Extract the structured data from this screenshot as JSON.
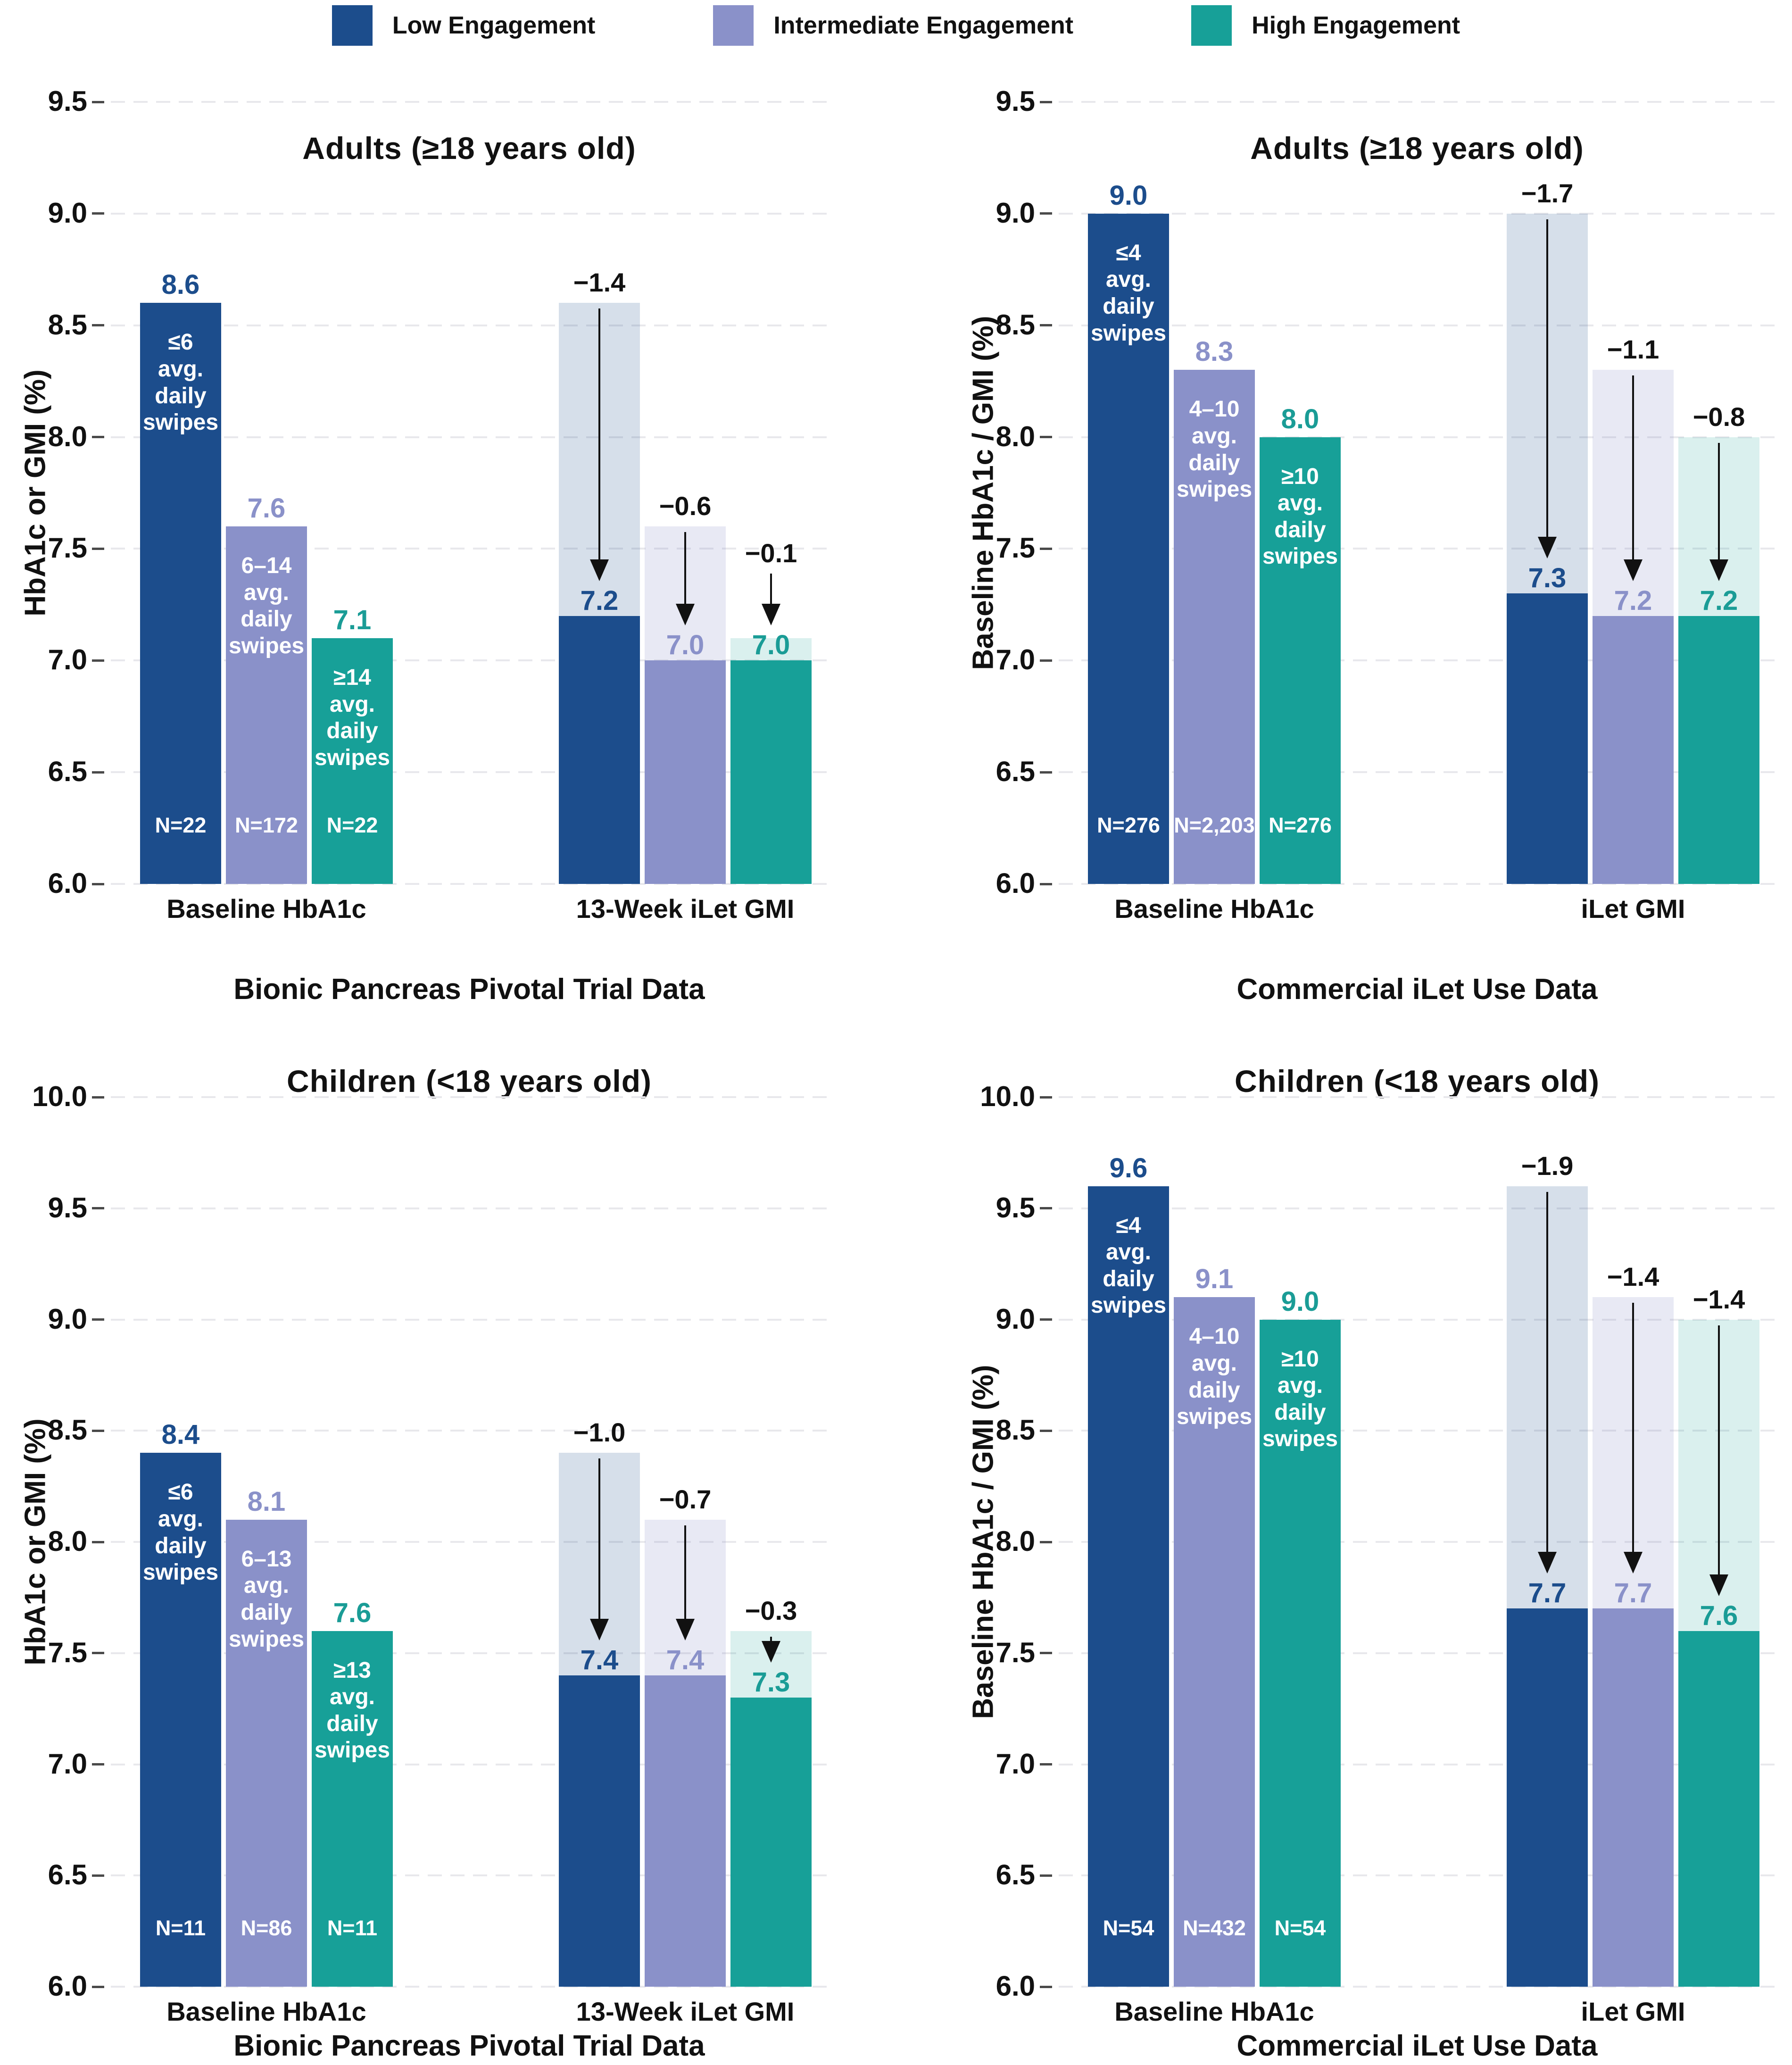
{
  "legend": {
    "items": [
      {
        "id": "low",
        "label": "Low Engagement",
        "color": "#1C4D8C"
      },
      {
        "id": "intermediate",
        "label": "Intermediate Engagement",
        "color": "#8A91C9"
      },
      {
        "id": "high",
        "label": "High Engagement",
        "color": "#17A098"
      }
    ]
  },
  "series_styles": {
    "low": {
      "color": "#1C4D8C",
      "ghost_color": "rgba(28,77,140,0.18)",
      "value_color": "#1C4D8C"
    },
    "intermediate": {
      "color": "#8A91C9",
      "ghost_color": "rgba(138,145,201,0.20)",
      "value_color": "#8A91C9"
    },
    "high": {
      "color": "#17A098",
      "ghost_color": "rgba(23,160,152,0.16)",
      "value_color": "#1A9C96"
    }
  },
  "chart_data": [
    {
      "type": "bar",
      "title": "Adults (≥18 years old)",
      "ylabel": "HbA1c or GMI (%)",
      "xlabel": "Bionic Pancreas Pivotal Trial Data",
      "ylim": [
        6.0,
        9.5
      ],
      "ytick_step": 0.5,
      "grid": true,
      "legend_position": "top-center",
      "groups": [
        {
          "label": "Baseline HbA1c",
          "bars": [
            {
              "series": "low",
              "value": 8.6,
              "display": "8.6",
              "bar_text": [
                "≤6",
                "avg.",
                "daily",
                "swipes"
              ],
              "n": "N=22"
            },
            {
              "series": "intermediate",
              "value": 7.6,
              "display": "7.6",
              "bar_text": [
                "6–14",
                "avg.",
                "daily",
                "swipes"
              ],
              "n": "N=172"
            },
            {
              "series": "high",
              "value": 7.1,
              "display": "7.1",
              "bar_text": [
                "≥14",
                "avg.",
                "daily",
                "swipes"
              ],
              "n": "N=22"
            }
          ]
        },
        {
          "label": "13-Week iLet GMI",
          "bars": [
            {
              "series": "low",
              "value": 7.2,
              "display": "7.2",
              "baseline_from": 8.6,
              "delta": "−1.4"
            },
            {
              "series": "intermediate",
              "value": 7.0,
              "display": "7.0",
              "baseline_from": 7.6,
              "delta": "−0.6"
            },
            {
              "series": "high",
              "value": 7.0,
              "display": "7.0",
              "baseline_from": 7.1,
              "delta": "−0.1"
            }
          ]
        }
      ]
    },
    {
      "type": "bar",
      "title": "Adults (≥18 years old)",
      "ylabel": "Baseline HbA1c / GMI (%)",
      "xlabel": "Commercial iLet Use Data",
      "ylim": [
        6.0,
        9.5
      ],
      "ytick_step": 0.5,
      "grid": true,
      "groups": [
        {
          "label": "Baseline HbA1c",
          "bars": [
            {
              "series": "low",
              "value": 9.0,
              "display": "9.0",
              "bar_text": [
                "≤4",
                "avg.",
                "daily",
                "swipes"
              ],
              "n": "N=276"
            },
            {
              "series": "intermediate",
              "value": 8.3,
              "display": "8.3",
              "bar_text": [
                "4–10",
                "avg.",
                "daily",
                "swipes"
              ],
              "n": "N=2,203"
            },
            {
              "series": "high",
              "value": 8.0,
              "display": "8.0",
              "bar_text": [
                "≥10",
                "avg.",
                "daily",
                "swipes"
              ],
              "n": "N=276"
            }
          ]
        },
        {
          "label": "iLet GMI",
          "bars": [
            {
              "series": "low",
              "value": 7.3,
              "display": "7.3",
              "baseline_from": 9.0,
              "delta": "−1.7"
            },
            {
              "series": "intermediate",
              "value": 7.2,
              "display": "7.2",
              "baseline_from": 8.3,
              "delta": "−1.1"
            },
            {
              "series": "high",
              "value": 7.2,
              "display": "7.2",
              "baseline_from": 8.0,
              "delta": "−0.8"
            }
          ]
        }
      ]
    },
    {
      "type": "bar",
      "title": "Children (<18 years old)",
      "ylabel": "HbA1c or GMI (%)",
      "xlabel": "Bionic Pancreas Pivotal Trial Data",
      "ylim": [
        6.0,
        10.0
      ],
      "ytick_step": 0.5,
      "grid": true,
      "groups": [
        {
          "label": "Baseline HbA1c",
          "bars": [
            {
              "series": "low",
              "value": 8.4,
              "display": "8.4",
              "bar_text": [
                "≤6",
                "avg.",
                "daily",
                "swipes"
              ],
              "n": "N=11"
            },
            {
              "series": "intermediate",
              "value": 8.1,
              "display": "8.1",
              "bar_text": [
                "6–13",
                "avg.",
                "daily",
                "swipes"
              ],
              "n": "N=86"
            },
            {
              "series": "high",
              "value": 7.6,
              "display": "7.6",
              "bar_text": [
                "≥13",
                "avg.",
                "daily",
                "swipes"
              ],
              "n": "N=11"
            }
          ]
        },
        {
          "label": "13-Week iLet GMI",
          "bars": [
            {
              "series": "low",
              "value": 7.4,
              "display": "7.4",
              "baseline_from": 8.4,
              "delta": "−1.0"
            },
            {
              "series": "intermediate",
              "value": 7.4,
              "display": "7.4",
              "baseline_from": 8.1,
              "delta": "−0.7"
            },
            {
              "series": "high",
              "value": 7.3,
              "display": "7.3",
              "baseline_from": 7.6,
              "delta": "−0.3"
            }
          ]
        }
      ]
    },
    {
      "type": "bar",
      "title": "Children (<18 years old)",
      "ylabel": "Baseline HbA1c / GMI (%)",
      "xlabel": "Commercial iLet Use Data",
      "ylim": [
        6.0,
        10.0
      ],
      "ytick_step": 0.5,
      "grid": true,
      "groups": [
        {
          "label": "Baseline HbA1c",
          "bars": [
            {
              "series": "low",
              "value": 9.6,
              "display": "9.6",
              "bar_text": [
                "≤4",
                "avg.",
                "daily",
                "swipes"
              ],
              "n": "N=54"
            },
            {
              "series": "intermediate",
              "value": 9.1,
              "display": "9.1",
              "bar_text": [
                "4–10",
                "avg.",
                "daily",
                "swipes"
              ],
              "n": "N=432"
            },
            {
              "series": "high",
              "value": 9.0,
              "display": "9.0",
              "bar_text": [
                "≥10",
                "avg.",
                "daily",
                "swipes"
              ],
              "n": "N=54"
            }
          ]
        },
        {
          "label": "iLet GMI",
          "bars": [
            {
              "series": "low",
              "value": 7.7,
              "display": "7.7",
              "baseline_from": 9.6,
              "delta": "−1.9"
            },
            {
              "series": "intermediate",
              "value": 7.7,
              "display": "7.7",
              "baseline_from": 9.1,
              "delta": "−1.4"
            },
            {
              "series": "high",
              "value": 7.6,
              "display": "7.6",
              "baseline_from": 9.0,
              "delta": "−1.4"
            }
          ]
        }
      ]
    }
  ]
}
